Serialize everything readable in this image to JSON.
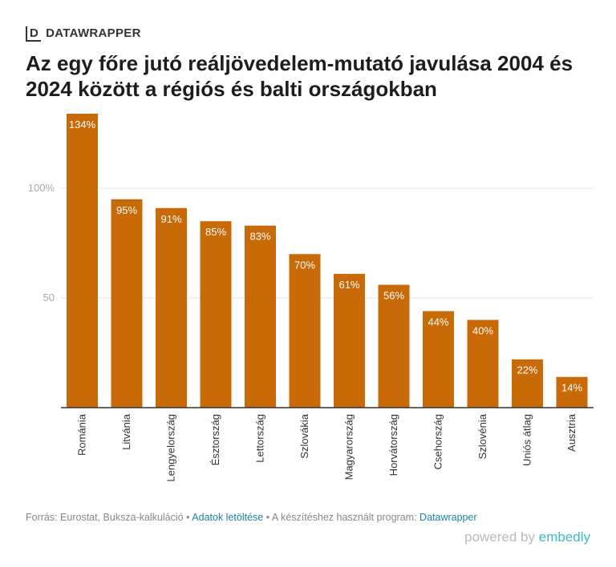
{
  "header": {
    "logo": "D",
    "brand": "DATAWRAPPER"
  },
  "chart_data": {
    "type": "bar",
    "title": "Az egy főre jutó reáljövedelem-mutató javulása 2004 és 2024 között a régiós és balti országokban",
    "categories": [
      "Románia",
      "Litvánia",
      "Lengyelország",
      "Észtország",
      "Lettország",
      "Szlovákia",
      "Magyarország",
      "Horvátország",
      "Csehország",
      "Szlovénia",
      "Uniós átlag",
      "Ausztria"
    ],
    "values": [
      134,
      95,
      91,
      85,
      83,
      70,
      61,
      56,
      44,
      40,
      22,
      14
    ],
    "value_labels": [
      "134%",
      "95%",
      "91%",
      "85%",
      "83%",
      "70%",
      "61%",
      "56%",
      "44%",
      "40%",
      "22%",
      "14%"
    ],
    "color": "#c96a08",
    "ylim": [
      0,
      134
    ],
    "yticks": [
      50,
      {
        "value": 100,
        "label": "100%"
      }
    ],
    "grid": true
  },
  "footer": {
    "source": "Forrás: Eurostat, Buksza-kalkuláció",
    "separator": "•",
    "download": "Adatok letöltése",
    "made_with": "A készítéshez használt program:",
    "tool": "Datawrapper",
    "powered": "powered by",
    "embed": "embedly"
  }
}
